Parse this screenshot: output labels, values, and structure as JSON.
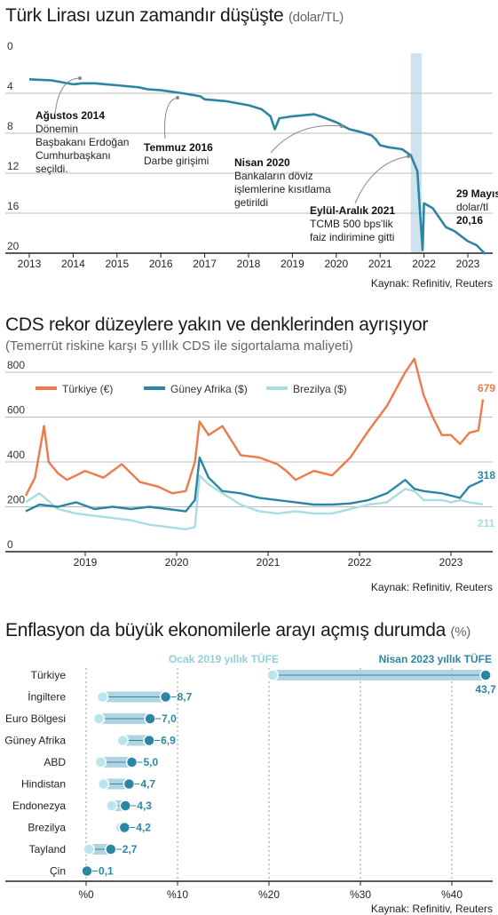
{
  "colors": {
    "teal": "#2a86a3",
    "orange": "#ec7a4b",
    "light": "#a8dde2",
    "grid": "#bbbbbb",
    "shade": "#cfe3ee",
    "bar": "#9ecad8"
  },
  "chart1": {
    "title": "Türk Lirası uzun zamandır düşüşte",
    "unit": "(dolar/TL)",
    "source": "Kaynak: Refinitiv, Reuters",
    "chart_data": {
      "type": "line",
      "title": "Türk Lirası uzun zamandır düşüşte",
      "ylabel": "(dolar/TL)",
      "ylim": [
        0,
        20
      ],
      "y_inverted": true,
      "y_ticks": [
        "0",
        "4",
        "8",
        "12",
        "16",
        "20"
      ],
      "x_ticks": [
        "2013",
        "2014",
        "2015",
        "2016",
        "2017",
        "2018",
        "2019",
        "2020",
        "2021",
        "2022",
        "2023"
      ],
      "series": [
        {
          "x": [
            2013.0,
            2013.5,
            2014.0,
            2014.2,
            2014.5,
            2015.0,
            2015.5,
            2015.7,
            2016.0,
            2016.5,
            2016.9,
            2017.0,
            2017.5,
            2018.0,
            2018.3,
            2018.5,
            2018.6,
            2018.7,
            2019.0,
            2019.5,
            2019.7,
            2020.0,
            2020.3,
            2020.5,
            2020.8,
            2020.9,
            2021.0,
            2021.2,
            2021.5,
            2021.7,
            2021.85,
            2021.92,
            2021.97,
            2022.0,
            2022.2,
            2022.5,
            2022.7,
            2023.0,
            2023.2,
            2023.4
          ],
          "values": [
            2.6,
            2.7,
            3.1,
            3.0,
            3.0,
            3.2,
            3.4,
            3.6,
            3.7,
            4.0,
            4.3,
            4.6,
            4.8,
            5.2,
            5.6,
            6.3,
            7.6,
            6.5,
            6.3,
            6.1,
            6.4,
            6.9,
            7.6,
            7.8,
            8.2,
            8.6,
            9.2,
            9.4,
            9.6,
            10.2,
            11.8,
            16.5,
            19.7,
            15.0,
            15.5,
            17.4,
            17.8,
            18.8,
            19.2,
            20.1
          ]
        }
      ],
      "shaded_period": [
        2021.7,
        2021.95
      ],
      "annotations": [
        {
          "bold": "Ağustos 2014",
          "lines": [
            "Dönemin",
            "Başbakanı Erdoğan",
            "Cumhurbaşkanı",
            "seçildi."
          ]
        },
        {
          "bold": "Temmuz 2016",
          "lines": [
            "Darbe girişimi"
          ]
        },
        {
          "bold": "Nisan 2020",
          "lines": [
            "Bankaların döviz",
            "işlemlerine kısıtlama",
            "getirildi"
          ]
        },
        {
          "bold": "Eylül-Aralık 2021",
          "lines": [
            "TCMB 500 bps'lik",
            "faiz indirimine gitti"
          ]
        },
        {
          "bold": "29 Mayıs",
          "lines": [
            "dolar/tl"
          ],
          "value": "20,16"
        }
      ]
    }
  },
  "chart2": {
    "title": "CDS rekor düzeylere yakın ve denklerinden ayrışıyor",
    "subtitle": "(Temerrüt riskine karşı 5 yıllık CDS ile sigortalama maliyeti)",
    "source": "Kaynak: Refinitiv, Reuters",
    "chart_data": {
      "type": "line",
      "ylim": [
        0,
        800
      ],
      "y_ticks": [
        "800",
        "600",
        "400",
        "200",
        "0"
      ],
      "x_ticks": [
        "2019",
        "2020",
        "2021",
        "2022",
        "2023"
      ],
      "legend_position": "top-left",
      "series": [
        {
          "name": "Türkiye (€)",
          "color": "#ec7a4b",
          "end_label": "679",
          "x": [
            2018.35,
            2018.45,
            2018.55,
            2018.6,
            2018.7,
            2018.8,
            2019.0,
            2019.2,
            2019.4,
            2019.6,
            2019.8,
            2019.95,
            2020.1,
            2020.2,
            2020.25,
            2020.35,
            2020.5,
            2020.7,
            2020.9,
            2021.1,
            2021.2,
            2021.3,
            2021.5,
            2021.7,
            2021.9,
            2022.1,
            2022.3,
            2022.5,
            2022.6,
            2022.7,
            2022.8,
            2022.9,
            2023.0,
            2023.1,
            2023.2,
            2023.3,
            2023.35
          ],
          "values": [
            250,
            330,
            560,
            400,
            350,
            320,
            360,
            330,
            390,
            310,
            290,
            260,
            270,
            400,
            580,
            520,
            560,
            430,
            420,
            390,
            360,
            320,
            360,
            340,
            420,
            540,
            650,
            800,
            860,
            700,
            600,
            520,
            520,
            480,
            530,
            540,
            679
          ]
        },
        {
          "name": "Güney Afrika ($)",
          "color": "#2a86a3",
          "end_label": "318",
          "x": [
            2018.35,
            2018.5,
            2018.7,
            2018.9,
            2019.1,
            2019.3,
            2019.5,
            2019.7,
            2019.9,
            2020.1,
            2020.2,
            2020.25,
            2020.35,
            2020.5,
            2020.7,
            2020.9,
            2021.1,
            2021.3,
            2021.5,
            2021.7,
            2021.9,
            2022.1,
            2022.3,
            2022.5,
            2022.6,
            2022.7,
            2022.9,
            2023.0,
            2023.1,
            2023.2,
            2023.35
          ],
          "values": [
            180,
            210,
            200,
            220,
            190,
            200,
            190,
            200,
            190,
            180,
            230,
            420,
            330,
            270,
            260,
            240,
            230,
            220,
            210,
            210,
            215,
            230,
            260,
            320,
            280,
            270,
            260,
            250,
            240,
            290,
            318
          ]
        },
        {
          "name": "Brezilya ($)",
          "color": "#a8dde2",
          "end_label": "211",
          "x": [
            2018.35,
            2018.5,
            2018.7,
            2018.9,
            2019.1,
            2019.3,
            2019.5,
            2019.7,
            2019.9,
            2020.1,
            2020.2,
            2020.25,
            2020.35,
            2020.5,
            2020.7,
            2020.9,
            2021.1,
            2021.3,
            2021.5,
            2021.7,
            2021.9,
            2022.1,
            2022.3,
            2022.5,
            2022.6,
            2022.7,
            2022.9,
            2023.0,
            2023.1,
            2023.2,
            2023.35
          ],
          "values": [
            220,
            260,
            190,
            170,
            160,
            150,
            140,
            120,
            110,
            100,
            110,
            340,
            300,
            260,
            210,
            180,
            170,
            180,
            170,
            170,
            190,
            210,
            220,
            280,
            270,
            230,
            230,
            220,
            230,
            220,
            211
          ]
        }
      ]
    }
  },
  "chart3": {
    "title": "Enflasyon da büyük ekonomilerle arayı açmış durumda",
    "unit": "(%)",
    "source": "Kaynak: Refinitiv, Reuters",
    "chart_data": {
      "type": "dumbbell",
      "series_labels": [
        "Ocak 2019 yıllık TÜFE",
        "Nisan 2023 yıllık TÜFE"
      ],
      "xlim": [
        0,
        45
      ],
      "x_ticks": [
        "%0",
        "%10",
        "%20",
        "%30",
        "%40"
      ],
      "categories": [
        "Türkiye",
        "İngiltere",
        "Euro Bölgesi",
        "Güney Afrika",
        "ABD",
        "Hindistan",
        "Endonezya",
        "Brezilya",
        "Tayland",
        "Çin"
      ],
      "start_values": [
        20.4,
        1.8,
        1.4,
        4.0,
        1.6,
        1.9,
        2.8,
        3.8,
        0.3,
        0.2
      ],
      "end_values": [
        43.7,
        8.7,
        7.0,
        6.9,
        5.0,
        4.7,
        4.3,
        4.2,
        2.7,
        0.1
      ],
      "end_labels": [
        "43,7",
        "8,7",
        "7,0",
        "6,9",
        "5,0",
        "4,7",
        "4,3",
        "4,2",
        "2,7",
        "0,1"
      ]
    }
  }
}
